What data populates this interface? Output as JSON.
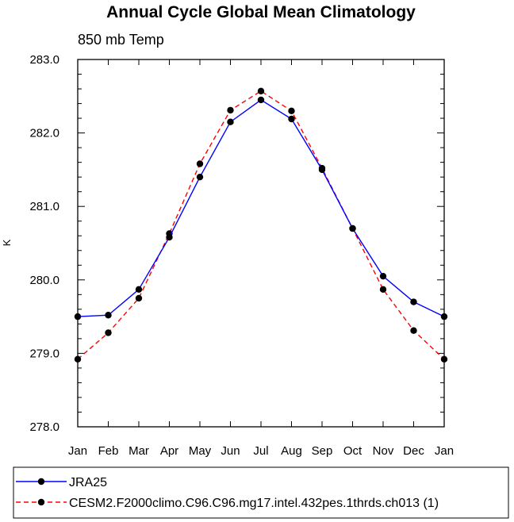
{
  "chart_data": {
    "type": "line",
    "title": "Annual Cycle Global Mean Climatology",
    "subtitle": "850 mb Temp",
    "xlabel": "",
    "ylabel": "K",
    "categories": [
      "Jan",
      "Feb",
      "Mar",
      "Apr",
      "May",
      "Jun",
      "Jul",
      "Aug",
      "Sep",
      "Oct",
      "Nov",
      "Dec",
      "Jan"
    ],
    "ylim": [
      278.0,
      283.0
    ],
    "yticks": [
      "278.0",
      "279.0",
      "280.0",
      "281.0",
      "282.0",
      "283.0"
    ],
    "series": [
      {
        "name": "JRA25",
        "color": "#0000ff",
        "dash": "solid",
        "values": [
          279.5,
          279.52,
          279.87,
          280.58,
          281.4,
          282.15,
          282.45,
          282.19,
          281.5,
          280.7,
          280.05,
          279.7,
          279.5
        ]
      },
      {
        "name": "CESM2.F2000climo.C96.C96.mg17.intel.432pes.1thrds.ch013 (1)",
        "color": "#ff0000",
        "dash": "dashed",
        "values": [
          278.92,
          279.28,
          279.75,
          280.63,
          281.58,
          282.31,
          282.57,
          282.3,
          281.52,
          280.7,
          279.87,
          279.31,
          278.92
        ]
      }
    ],
    "legend_position": "bottom"
  }
}
